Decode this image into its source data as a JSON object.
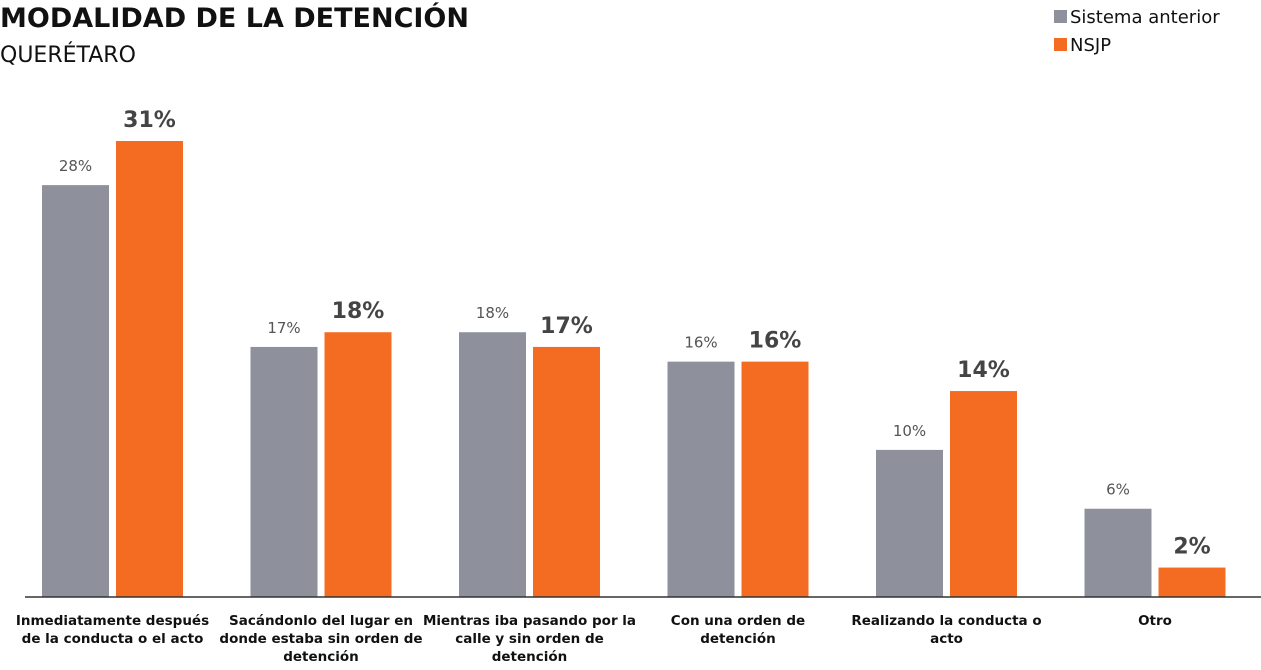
{
  "chart_data": {
    "type": "bar",
    "title": "MODALIDAD DE LA DETENCIÓN",
    "subtitle": "QUERÉTARO",
    "xlabel": "",
    "ylabel": "",
    "ylim": [
      0,
      33
    ],
    "grid": false,
    "legend_position": "top-right",
    "categories": [
      [
        "Inmediatamente después",
        "de la conducta o el acto"
      ],
      [
        "Sacándonlo del lugar en",
        "donde estaba sin orden de",
        "detención"
      ],
      [
        "Mientras iba pasando por la",
        "calle y sin orden de",
        "detención"
      ],
      [
        "Con una orden de",
        "detención"
      ],
      [
        "Realizando la conducta o",
        "acto"
      ],
      [
        "Otro"
      ]
    ],
    "series": [
      {
        "name": "Sistema anterior",
        "color": "#8e919c",
        "values": [
          28,
          17,
          18,
          16,
          10,
          6
        ],
        "labels": [
          "28%",
          "17%",
          "18%",
          "16%",
          "10%",
          "6%"
        ]
      },
      {
        "name": "NSJP",
        "color": "#f36c21",
        "values": [
          31,
          18,
          17,
          16,
          14,
          2
        ],
        "labels": [
          "31%",
          "18%",
          "17%",
          "16%",
          "14%",
          "2%"
        ]
      }
    ]
  }
}
